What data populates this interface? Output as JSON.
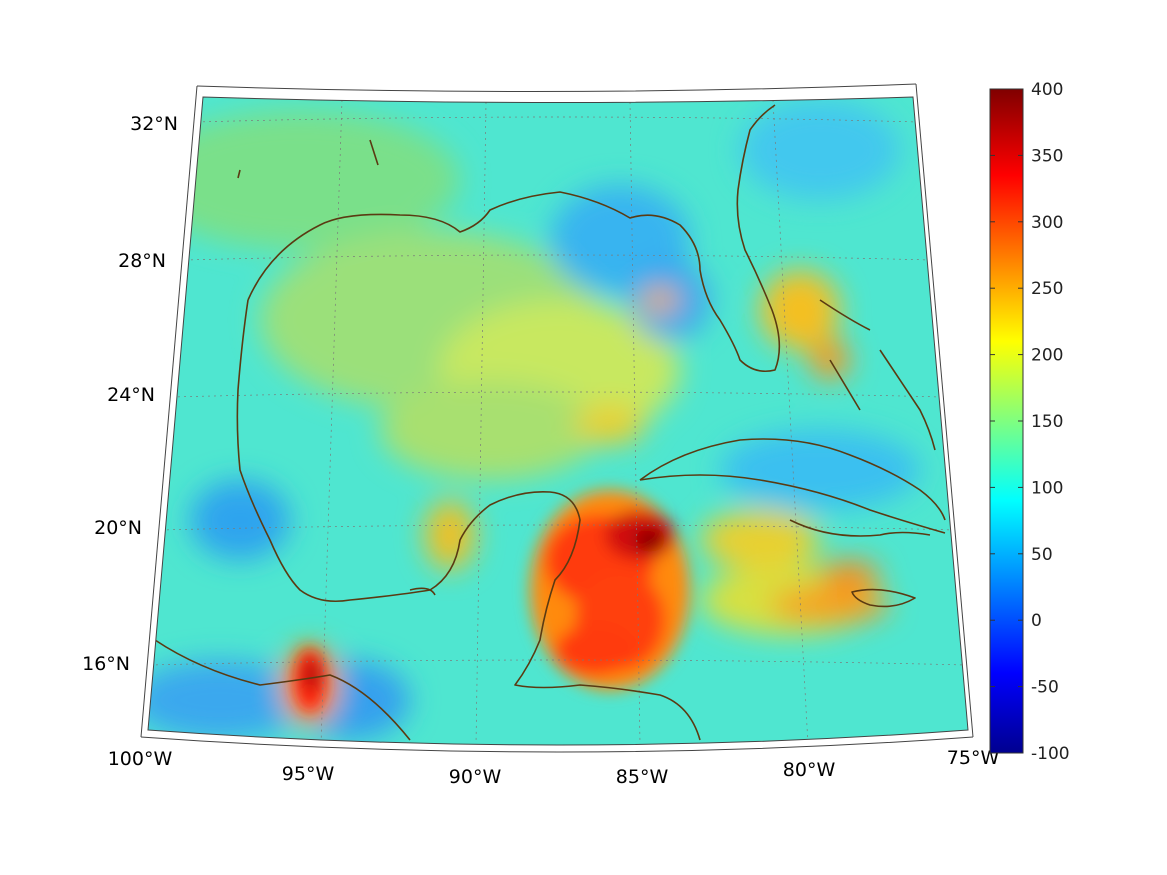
{
  "colorbar": {
    "ticks": [
      "400",
      "350",
      "300",
      "250",
      "200",
      "150",
      "100",
      "50",
      "0",
      "-50",
      "-100"
    ],
    "range": [
      -100,
      400
    ],
    "colormap": "jet"
  },
  "axes": {
    "lat_labels": [
      "32°N",
      "28°N",
      "24°N",
      "20°N",
      "16°N"
    ],
    "lon_labels": [
      "100°W",
      "95°W",
      "90°W",
      "85°W",
      "80°W",
      "75°W"
    ]
  },
  "field": {
    "background_level": 150,
    "features": [
      {
        "name": "Yucatan maximum",
        "lon": -86.5,
        "lat": 19.3,
        "value": 400
      },
      {
        "name": "Tehuantepec maximum",
        "lon": -94.8,
        "lat": 15.8,
        "value": 370
      },
      {
        "name": "NE Gulf minimum",
        "lon": -86.0,
        "lat": 28.5,
        "value": 50
      },
      {
        "name": "Jamaica maximum",
        "lon": -79.0,
        "lat": 18.0,
        "value": 260
      }
    ]
  }
}
